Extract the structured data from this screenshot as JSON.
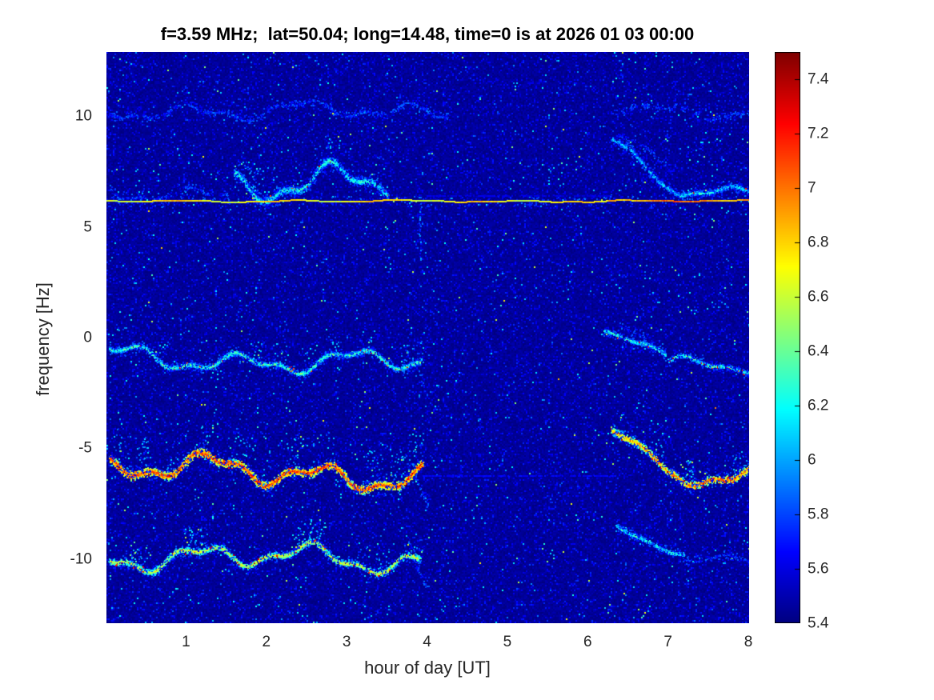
{
  "colors": {
    "background": "#ffffff",
    "tick_text": "#262626",
    "title_text": "#000000"
  },
  "chart_data": {
    "type": "heatmap",
    "title": "f=3.59 MHz;  lat=50.04; long=14.48, time=0 is at 2026 01 03 00:00",
    "xlabel": "hour of day [UT]",
    "ylabel": "frequency [Hz]",
    "xlim": [
      0.01,
      8.01
    ],
    "ylim": [
      -12.9,
      12.9
    ],
    "xticks": [
      {
        "label": "1",
        "value": 1
      },
      {
        "label": "2",
        "value": 2
      },
      {
        "label": "3",
        "value": 3
      },
      {
        "label": "4",
        "value": 4
      },
      {
        "label": "5",
        "value": 5
      },
      {
        "label": "6",
        "value": 6
      },
      {
        "label": "7",
        "value": 7
      },
      {
        "label": "8",
        "value": 8
      }
    ],
    "yticks": [
      {
        "label": "10",
        "value": 10
      },
      {
        "label": "5",
        "value": 5
      },
      {
        "label": "0",
        "value": 0
      },
      {
        "label": "-5",
        "value": -5
      },
      {
        "label": "-10",
        "value": -10
      }
    ],
    "grid": false,
    "colormap": "jet",
    "clim": [
      5.4,
      7.5
    ],
    "colorbar_position": "right",
    "colorbar_ticks": [
      {
        "label": "7.4",
        "value": 7.4
      },
      {
        "label": "7.2",
        "value": 7.2
      },
      {
        "label": "7",
        "value": 7
      },
      {
        "label": "6.8",
        "value": 6.8
      },
      {
        "label": "6.6",
        "value": 6.6
      },
      {
        "label": "6.4",
        "value": 6.4
      },
      {
        "label": "6.2",
        "value": 6.2
      },
      {
        "label": "6",
        "value": 6
      },
      {
        "label": "5.8",
        "value": 5.8
      },
      {
        "label": "5.6",
        "value": 5.6
      },
      {
        "label": "5.4",
        "value": 5.4
      }
    ],
    "noise": {
      "cell": 2,
      "base": 5.4,
      "var": 0.1,
      "speckle_p": 0.12,
      "speckle_v": 0.2,
      "dot_p": 0.01,
      "dot_v": 0.45,
      "seed": 7
    },
    "traces": [
      {
        "name": "upper-left",
        "x0": 0.05,
        "x1": 4.25,
        "f0": 10.35,
        "f1": 10.15,
        "amp": 0.28,
        "sigma": 1.6,
        "strength": 6.05,
        "density": 2,
        "gap": 0.35,
        "seed": 11
      },
      {
        "name": "upper-right",
        "x0": 6.3,
        "x1": 8.04,
        "f0": 10.55,
        "f1": 10.05,
        "amp": 0.22,
        "sigma": 1.5,
        "strength": 6.0,
        "density": 2,
        "gap": 0.4,
        "seed": 12
      },
      {
        "name": "above-line-wisps",
        "x0": 0.05,
        "x1": 1.6,
        "f0": 6.6,
        "f1": 6.55,
        "amp": 0.3,
        "sigma": 2.2,
        "strength": 5.95,
        "density": 2,
        "gap": 0.3,
        "seed": 14
      },
      {
        "name": "above-line-left",
        "x0": 1.6,
        "x1": 3.5,
        "f0": 7.1,
        "f1": 6.8,
        "amp": 0.55,
        "sigma": 3.0,
        "strength": 6.45,
        "density": 4,
        "gap": 0.05,
        "speck": 0.02,
        "plume": 0.06,
        "plumeH": 40,
        "seed": 15
      },
      {
        "name": "above-desc-fork",
        "x0": 6.35,
        "x1": 6.95,
        "f0": 9.2,
        "f1": 7.7,
        "amp": 0.15,
        "sigma": 1.4,
        "strength": 5.95,
        "density": 1.5,
        "gap": 0.45,
        "seed": 18
      },
      {
        "name": "above-desc-right",
        "x0": 6.3,
        "x1": 7.15,
        "f0": 9.0,
        "f1": 6.5,
        "amp": 0.18,
        "sigma": 2.0,
        "strength": 6.35,
        "density": 3,
        "gap": 0.15,
        "seed": 16
      },
      {
        "name": "above-right-tail",
        "x0": 7.15,
        "x1": 8.04,
        "f0": 6.55,
        "f1": 6.4,
        "amp": 0.2,
        "sigma": 2.0,
        "strength": 6.4,
        "density": 3,
        "gap": 0.1,
        "speck": 0.02,
        "seed": 17
      },
      {
        "name": "mid-left",
        "x0": 0.05,
        "x1": 3.92,
        "f0": -0.85,
        "f1": -1.15,
        "amp": 0.33,
        "sigma": 1.8,
        "strength": 6.55,
        "density": 3.5,
        "gap": 0.06,
        "speck": 0.05,
        "plume": 0.05,
        "plumeH": 28,
        "seed": 19
      },
      {
        "name": "mid-left-enddip",
        "x0": 3.86,
        "x1": 4.0,
        "f0": -1.2,
        "f1": -2.6,
        "amp": 0.06,
        "sigma": 1.2,
        "strength": 6.0,
        "density": 1.5,
        "gap": 0.35,
        "seed": 20
      },
      {
        "name": "mid-right-fork",
        "x0": 6.2,
        "x1": 6.8,
        "f0": 0.75,
        "f1": -0.1,
        "amp": 0.1,
        "sigma": 1.3,
        "strength": 5.95,
        "density": 1.5,
        "gap": 0.45,
        "seed": 22
      },
      {
        "name": "mid-right-desc",
        "x0": 6.2,
        "x1": 7.0,
        "f0": 0.35,
        "f1": -0.95,
        "amp": 0.12,
        "sigma": 1.6,
        "strength": 6.5,
        "density": 3,
        "gap": 0.12,
        "speck": 0.05,
        "seed": 21
      },
      {
        "name": "mid-right-tail",
        "x0": 7.0,
        "x1": 8.04,
        "f0": -1.0,
        "f1": -1.35,
        "amp": 0.22,
        "sigma": 1.6,
        "strength": 6.55,
        "density": 3,
        "gap": 0.08,
        "speck": 0.06,
        "seed": 23
      },
      {
        "name": "low-strong-left",
        "x0": 0.05,
        "x1": 3.95,
        "f0": -5.9,
        "f1": -6.2,
        "amp": 0.42,
        "sigma": 2.6,
        "strength": 7.3,
        "density": 6,
        "gap": 0.03,
        "speck": 0.1,
        "plume": 0.1,
        "plumeH": 45,
        "seed": 24
      },
      {
        "name": "low-strong-enddip",
        "x0": 3.85,
        "x1": 4.02,
        "f0": -6.4,
        "f1": -7.6,
        "amp": 0.06,
        "sigma": 1.4,
        "strength": 6.2,
        "density": 2,
        "gap": 0.3,
        "seed": 25
      },
      {
        "name": "low-strong-right-desc",
        "x0": 6.28,
        "x1": 7.05,
        "f0": -4.2,
        "f1": -6.05,
        "amp": 0.15,
        "sigma": 2.4,
        "strength": 7.1,
        "density": 5,
        "gap": 0.08,
        "speck": 0.1,
        "plume": 0.06,
        "plumeH": 30,
        "seed": 26
      },
      {
        "name": "low-strong-right-tail",
        "x0": 7.05,
        "x1": 8.04,
        "f0": -6.1,
        "f1": -6.3,
        "amp": 0.3,
        "sigma": 2.4,
        "strength": 7.2,
        "density": 5,
        "gap": 0.05,
        "speck": 0.1,
        "plume": 0.08,
        "plumeH": 30,
        "seed": 27
      },
      {
        "name": "low10-left",
        "x0": 0.05,
        "x1": 3.92,
        "f0": -9.8,
        "f1": -10.1,
        "amp": 0.38,
        "sigma": 2.0,
        "strength": 6.85,
        "density": 4,
        "gap": 0.07,
        "speck": 0.06,
        "plume": 0.05,
        "plumeH": 30,
        "seed": 28
      },
      {
        "name": "low10-enddip",
        "x0": 3.85,
        "x1": 4.0,
        "f0": -10.3,
        "f1": -11.4,
        "amp": 0.06,
        "sigma": 1.2,
        "strength": 6.1,
        "density": 1.5,
        "gap": 0.3,
        "seed": 29
      },
      {
        "name": "low10-right-desc",
        "x0": 6.35,
        "x1": 7.2,
        "f0": -8.5,
        "f1": -9.75,
        "amp": 0.12,
        "sigma": 1.6,
        "strength": 6.5,
        "density": 3,
        "gap": 0.15,
        "seed": 30
      },
      {
        "name": "low10-right-tail",
        "x0": 7.2,
        "x1": 8.04,
        "f0": -9.85,
        "f1": -10.0,
        "amp": 0.15,
        "sigma": 1.5,
        "strength": 6.0,
        "density": 2,
        "gap": 0.35,
        "seed": 31
      },
      {
        "name": "carrier-line",
        "type": "line",
        "x0": 0.01,
        "x1": 8.01,
        "f0": 6.2,
        "f1": 6.2,
        "amp": 0.03,
        "strength": 6.72,
        "boost": {
          "x0": 6.25,
          "x1": 8.01,
          "dv": 0.3
        },
        "seed": 13
      }
    ],
    "verticals": [
      {
        "x": 3.91,
        "f0": 6.15,
        "f1": 3.3,
        "strength": 6.05,
        "seed": 41
      }
    ],
    "faint_bands": [
      {
        "x0": 3.95,
        "x1": 6.35,
        "f": -6.2,
        "value": 5.6
      },
      {
        "x0": 4.0,
        "x1": 6.3,
        "f": 6.42,
        "value": 5.55
      }
    ]
  }
}
